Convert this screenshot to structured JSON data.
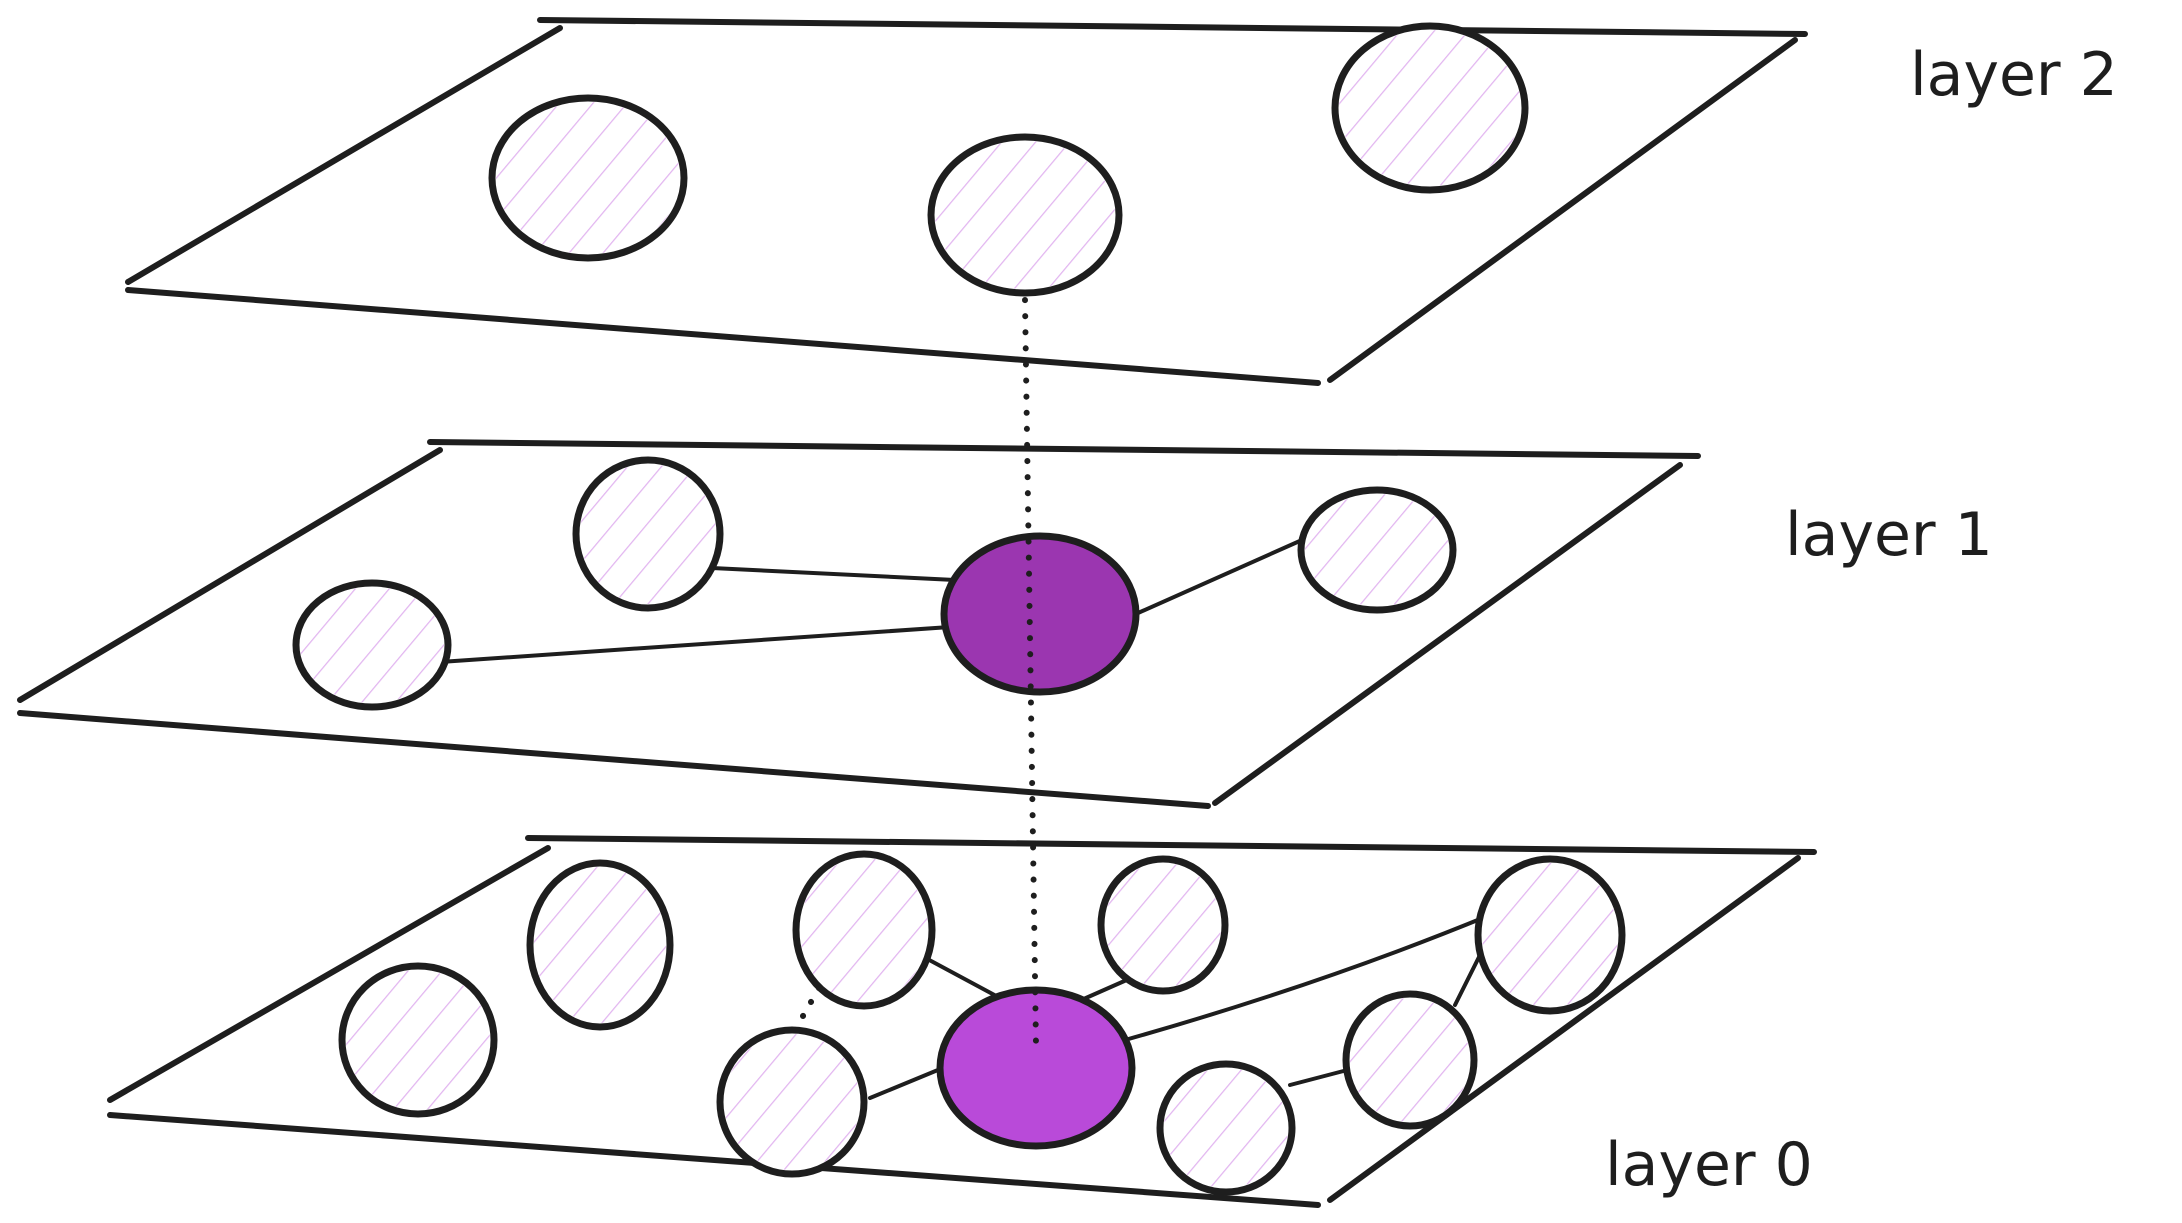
{
  "layers": [
    {
      "label": "layer 2"
    },
    {
      "label": "layer 1"
    },
    {
      "label": "layer 0"
    }
  ],
  "colors": {
    "stroke": "#1e1e1e",
    "node_hatch": "#e2b5f0",
    "entry_layer1": "#9b36b0",
    "entry_layer0": "#b94ad9"
  }
}
